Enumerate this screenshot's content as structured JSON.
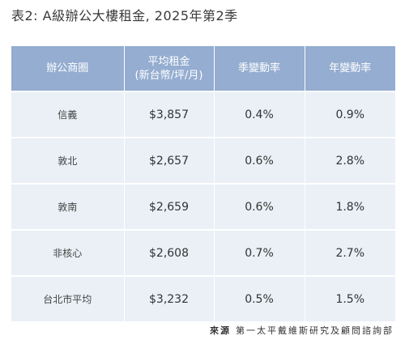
{
  "title": "表2: A級辦公大樓租金, 2025年第2季",
  "table": {
    "headers": {
      "district": "辦公商圈",
      "rent_line1": "平均租金",
      "rent_line2": "(新台幣/坪/月)",
      "qoq": "季變動率",
      "yoy": "年變動率"
    },
    "rows": [
      {
        "district": "信義",
        "rent": "$3,857",
        "qoq": "0.4%",
        "yoy": "0.9%"
      },
      {
        "district": "敦北",
        "rent": "$2,657",
        "qoq": "0.6%",
        "yoy": "2.8%"
      },
      {
        "district": "敦南",
        "rent": "$2,659",
        "qoq": "0.6%",
        "yoy": "1.8%"
      },
      {
        "district": "非核心",
        "rent": "$2,608",
        "qoq": "0.7%",
        "yoy": "2.7%"
      },
      {
        "district": "台北市平均",
        "rent": "$3,232",
        "qoq": "0.5%",
        "yoy": "1.5%"
      }
    ]
  },
  "source": {
    "label": "來源",
    "text": "第一太平戴維斯研究及顧問諮詢部"
  },
  "colors": {
    "header_bg": "#94add0",
    "row_bg": "#eaf0f6",
    "text": "#333333"
  }
}
